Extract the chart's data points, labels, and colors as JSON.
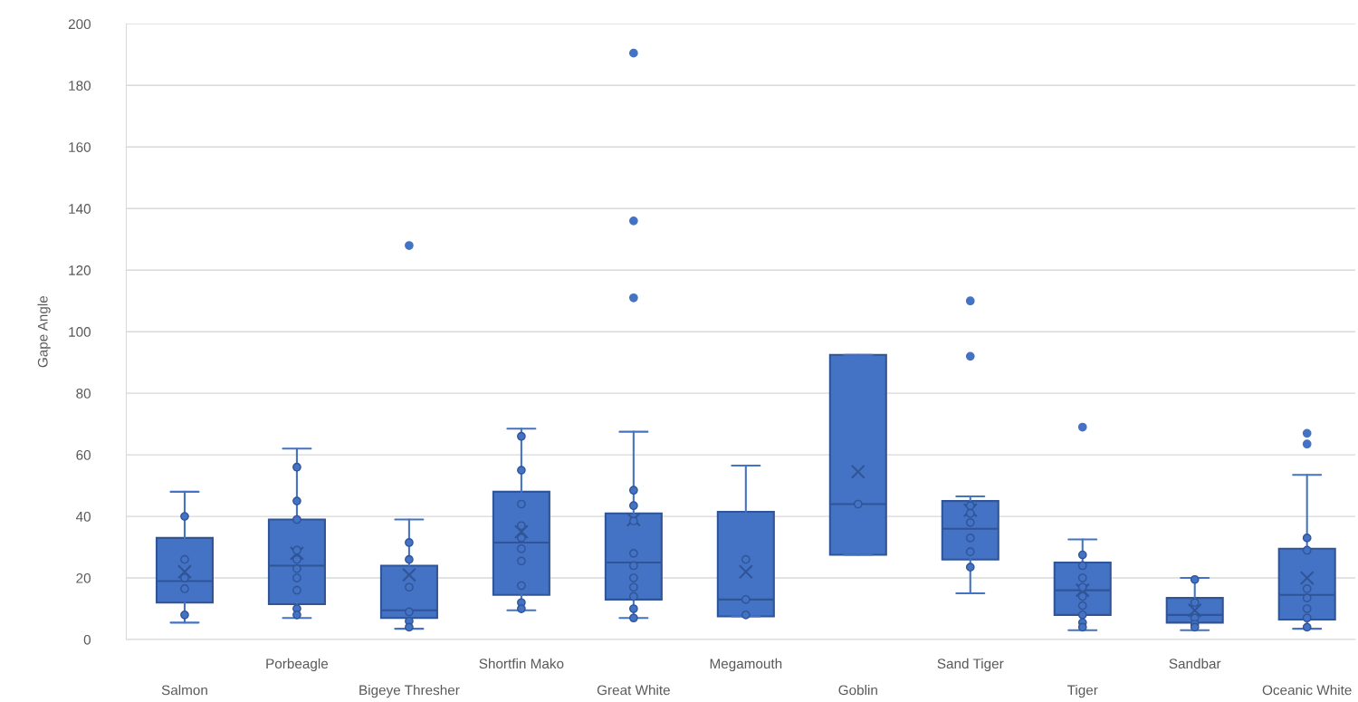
{
  "chart_data": {
    "type": "box",
    "ylabel": "Gape Angle",
    "categories": [
      "Salmon",
      "Porbeagle",
      "Bigeye Thresher",
      "Shortfin Mako",
      "Great White",
      "Megamouth",
      "Goblin",
      "Sand Tiger",
      "Tiger",
      "Sandbar",
      "Oceanic White"
    ],
    "ylim": [
      0,
      200
    ],
    "yticks": [
      0,
      20,
      40,
      60,
      80,
      100,
      120,
      140,
      160,
      180,
      200
    ],
    "grid": "y",
    "legend": false,
    "series": [
      {
        "type": "box",
        "color": "#4472c4",
        "boxes": [
          {
            "low": 5.5,
            "q1": 12,
            "median": 19,
            "q3": 33,
            "high": 48,
            "mean": 22
          },
          {
            "low": 7,
            "q1": 11.5,
            "median": 24,
            "q3": 39,
            "high": 62,
            "mean": 28
          },
          {
            "low": 3.5,
            "q1": 7,
            "median": 9.5,
            "q3": 24,
            "high": 39,
            "mean": 21,
            "outliers": [
              128
            ]
          },
          {
            "low": 9.5,
            "q1": 14.5,
            "median": 31.5,
            "q3": 48,
            "high": 68.5,
            "mean": 35
          },
          {
            "low": 7,
            "q1": 13,
            "median": 25,
            "q3": 41,
            "high": 67.5,
            "mean": 39,
            "outliers": [
              111,
              136,
              190.5
            ]
          },
          {
            "low": 7.5,
            "q1": 7.5,
            "median": 13,
            "q3": 41.5,
            "high": 56.5,
            "mean": 22
          },
          {
            "low": 27.5,
            "q1": 27.5,
            "median": 44,
            "q3": 92.5,
            "high": 92.5,
            "mean": 54.5
          },
          {
            "low": 15,
            "q1": 26,
            "median": 36,
            "q3": 45,
            "high": 46.5,
            "mean": 42,
            "outliers": [
              92,
              110
            ]
          },
          {
            "low": 3,
            "q1": 8,
            "median": 16,
            "q3": 25,
            "high": 32.5,
            "mean": 16,
            "outliers": [
              69
            ]
          },
          {
            "low": 3,
            "q1": 5.5,
            "median": 8,
            "q3": 13.5,
            "high": 20,
            "mean": 9.5
          },
          {
            "low": 3.5,
            "q1": 6.5,
            "median": 14.5,
            "q3": 29.5,
            "high": 53.5,
            "mean": 20,
            "outliers": [
              63.5,
              67
            ]
          }
        ]
      },
      {
        "type": "scatter",
        "color": "#4472c4",
        "marker": "circle",
        "x": [
          "Salmon",
          "Salmon",
          "Salmon",
          "Salmon",
          "Salmon",
          "Porbeagle",
          "Porbeagle",
          "Porbeagle",
          "Porbeagle",
          "Porbeagle",
          "Porbeagle",
          "Porbeagle",
          "Porbeagle",
          "Porbeagle",
          "Porbeagle",
          "Bigeye Thresher",
          "Bigeye Thresher",
          "Bigeye Thresher",
          "Bigeye Thresher",
          "Bigeye Thresher",
          "Bigeye Thresher",
          "Shortfin Mako",
          "Shortfin Mako",
          "Shortfin Mako",
          "Shortfin Mako",
          "Shortfin Mako",
          "Shortfin Mako",
          "Shortfin Mako",
          "Shortfin Mako",
          "Shortfin Mako",
          "Shortfin Mako",
          "Great White",
          "Great White",
          "Great White",
          "Great White",
          "Great White",
          "Great White",
          "Great White",
          "Great White",
          "Great White",
          "Great White",
          "Megamouth",
          "Megamouth",
          "Megamouth",
          "Goblin",
          "Sand Tiger",
          "Sand Tiger",
          "Sand Tiger",
          "Sand Tiger",
          "Sand Tiger",
          "Sand Tiger",
          "Tiger",
          "Tiger",
          "Tiger",
          "Tiger",
          "Tiger",
          "Tiger",
          "Tiger",
          "Tiger",
          "Tiger",
          "Sandbar",
          "Sandbar",
          "Sandbar",
          "Sandbar",
          "Sandbar",
          "Oceanic White",
          "Oceanic White",
          "Oceanic White",
          "Oceanic White",
          "Oceanic White",
          "Oceanic White",
          "Oceanic White"
        ],
        "values": [
          8,
          16.5,
          20,
          26,
          40,
          56,
          45,
          39,
          29,
          26,
          23,
          20,
          16,
          10,
          8,
          31.5,
          26,
          17,
          9,
          6,
          4,
          66,
          55,
          44,
          37,
          33,
          29.5,
          25.5,
          17.5,
          12,
          10,
          48.5,
          43.5,
          38.5,
          28,
          24,
          20,
          17,
          14,
          10,
          7,
          26,
          13,
          8,
          44,
          23.5,
          28.5,
          33,
          38,
          41,
          43.5,
          27.5,
          24,
          20,
          17,
          14,
          11,
          8,
          5.5,
          4,
          19.5,
          12,
          7,
          5,
          4,
          33,
          29,
          16.5,
          13.5,
          10,
          7,
          4
        ]
      }
    ]
  }
}
